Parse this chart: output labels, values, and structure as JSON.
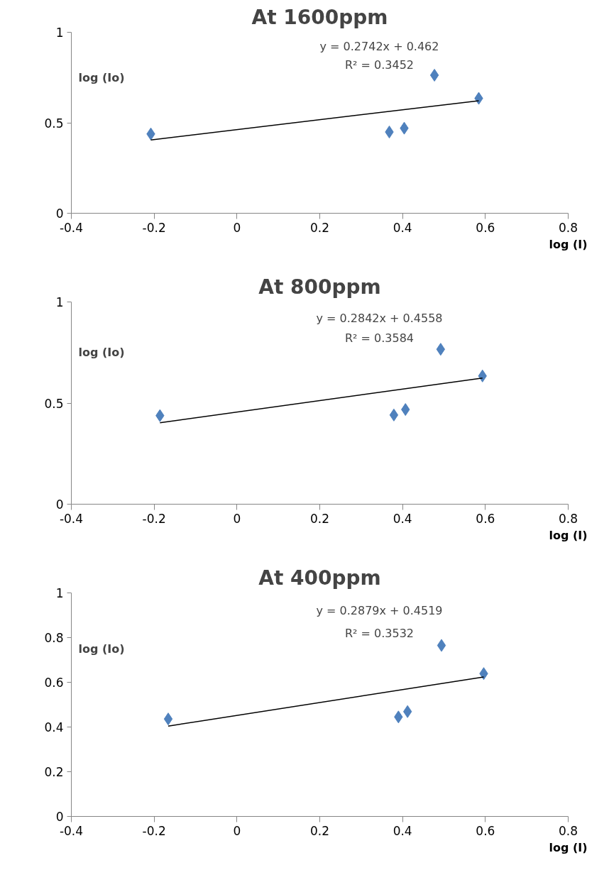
{
  "chart_data": [
    {
      "type": "scatter",
      "title": "At 1600ppm",
      "xlabel": "log (I)",
      "ylabel": "log (Io)",
      "marker": "diamond",
      "xlim": [
        -0.4,
        0.8
      ],
      "xticks": [
        -0.4,
        -0.2,
        0,
        0.2,
        0.4,
        0.6,
        0.8
      ],
      "ylim": [
        0,
        1
      ],
      "yticks": [
        0,
        0.5,
        1
      ],
      "series": [
        {
          "x": [
            -0.208,
            0.368,
            0.404,
            0.477,
            0.584
          ],
          "values": [
            0.438,
            0.449,
            0.47,
            0.763,
            0.635
          ],
          "color": "#4f81bd"
        },
        {
          "type": "line",
          "x": [
            -0.208,
            0.584
          ],
          "values": [
            0.405,
            0.622
          ],
          "color": "#000000",
          "marker": "none"
        }
      ],
      "annotations": [
        "y = 0.2742x + 0.462",
        "R² = 0.3452"
      ]
    },
    {
      "type": "scatter",
      "title": "At 800ppm",
      "xlabel": "log (I)",
      "ylabel": "log (Io)",
      "marker": "diamond",
      "xlim": [
        -0.4,
        0.8
      ],
      "xticks": [
        -0.4,
        -0.2,
        0,
        0.2,
        0.4,
        0.6,
        0.8
      ],
      "ylim": [
        0,
        1
      ],
      "yticks": [
        0,
        0.5,
        1
      ],
      "series": [
        {
          "x": [
            -0.186,
            0.379,
            0.407,
            0.492,
            0.593
          ],
          "values": [
            0.438,
            0.441,
            0.468,
            0.766,
            0.634
          ],
          "color": "#4f81bd"
        },
        {
          "type": "line",
          "x": [
            -0.186,
            0.593
          ],
          "values": [
            0.403,
            0.624
          ],
          "color": "#000000",
          "marker": "none"
        }
      ],
      "annotations": [
        "y = 0.2842x + 0.4558",
        "R² = 0.3584"
      ]
    },
    {
      "type": "scatter",
      "title": "At 400ppm",
      "xlabel": "log (I)",
      "ylabel": "log (Io)",
      "marker": "diamond",
      "xlim": [
        -0.4,
        0.8
      ],
      "xticks": [
        -0.4,
        -0.2,
        0,
        0.2,
        0.4,
        0.6,
        0.8
      ],
      "ylim": [
        0,
        1
      ],
      "yticks": [
        0,
        0.2,
        0.4,
        0.6,
        0.8,
        1
      ],
      "series": [
        {
          "x": [
            -0.166,
            0.39,
            0.412,
            0.494,
            0.596
          ],
          "values": [
            0.436,
            0.445,
            0.469,
            0.765,
            0.639
          ],
          "color": "#4f81bd"
        },
        {
          "type": "line",
          "x": [
            -0.166,
            0.596
          ],
          "values": [
            0.404,
            0.624
          ],
          "color": "#000000",
          "marker": "none"
        }
      ],
      "annotations": [
        "y = 0.2879x + 0.4519",
        "R² = 0.3532"
      ]
    }
  ]
}
